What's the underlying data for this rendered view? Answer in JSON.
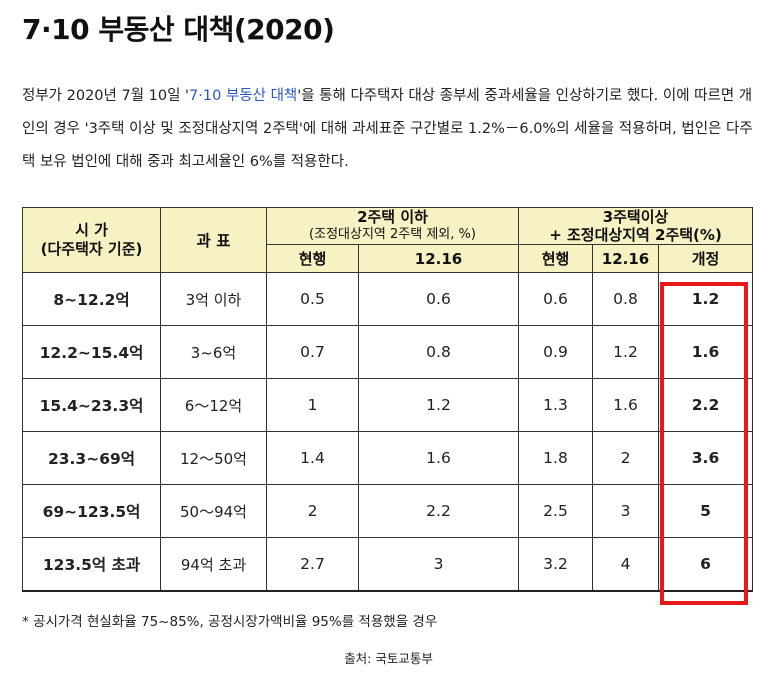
{
  "title": "7·10 부동산 대책(2020)",
  "paragraph": {
    "before": "정부가 2020년 7월 10일 '",
    "link": "7·10 부동산 대책",
    "after": "'을 통해 다주택자 대상 종부세 중과세율을 인상하기로 했다. 이에 따르면 개인의 경우 '3주택 이상 및 조정대상지역 2주택'에 대해 과세표준 구간별로 1.2%－6.0%의 세율을 적용하며, 법인은 다주택 보유 법인에 대해 중과 최고세율인 6%를 적용한다."
  },
  "table": {
    "header": {
      "price_col": "시 가\n(다주택자 기준)",
      "tax_col": "과 표",
      "group1": {
        "title": "2주택 이하",
        "sub": "(조정대상지역 2주택 제외, %)"
      },
      "group2": {
        "title": "3주택이상",
        "sub": "+ 조정대상지역 2주택(%)"
      },
      "g1_cols": [
        "현행",
        "12.16"
      ],
      "g2_cols": [
        "현행",
        "12.16",
        "개정"
      ]
    },
    "rows": [
      {
        "price": "8~12.2억",
        "tax_base": "3억 이하",
        "g1_current": "0.5",
        "g1_1216": "0.6",
        "g2_current": "0.6",
        "g2_1216": "0.8",
        "g2_revised": "1.2"
      },
      {
        "price": "12.2~15.4억",
        "tax_base": "3~6억",
        "g1_current": "0.7",
        "g1_1216": "0.8",
        "g2_current": "0.9",
        "g2_1216": "1.2",
        "g2_revised": "1.6"
      },
      {
        "price": "15.4~23.3억",
        "tax_base": "6～12억",
        "g1_current": "1",
        "g1_1216": "1.2",
        "g2_current": "1.3",
        "g2_1216": "1.6",
        "g2_revised": "2.2"
      },
      {
        "price": "23.3~69억",
        "tax_base": "12～50억",
        "g1_current": "1.4",
        "g1_1216": "1.6",
        "g2_current": "1.8",
        "g2_1216": "2",
        "g2_revised": "3.6"
      },
      {
        "price": "69~123.5억",
        "tax_base": "50～94억",
        "g1_current": "2",
        "g1_1216": "2.2",
        "g2_current": "2.5",
        "g2_1216": "3",
        "g2_revised": "5"
      },
      {
        "price": "123.5억 초과",
        "tax_base": "94억 초과",
        "g1_current": "2.7",
        "g1_1216": "3",
        "g2_current": "3.2",
        "g2_1216": "4",
        "g2_revised": "6"
      }
    ]
  },
  "footnote": "* 공시가격 현실화율 75~85%, 공정시장가액비율 95%를 적용했을 경우",
  "source": "출처: 국토교통부",
  "colors": {
    "header_bg": "#f6f2c4",
    "highlight": "#e8191b",
    "link": "#2a56c6"
  }
}
